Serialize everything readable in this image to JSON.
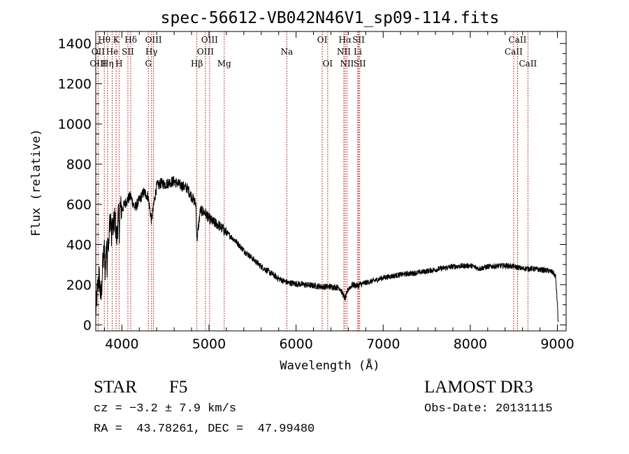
{
  "chart_data": {
    "type": "line",
    "title": "spec-56612-VB042N46V1_sp09-114.fits",
    "xlabel": "Wavelength (Å)",
    "ylabel": "Flux (relative)",
    "xlim": [
      3700,
      9100
    ],
    "ylim": [
      -30,
      1460
    ],
    "xticks": [
      4000,
      5000,
      6000,
      7000,
      8000,
      9000
    ],
    "yticks": [
      0,
      200,
      400,
      600,
      800,
      1000,
      1200,
      1400
    ],
    "grid": false,
    "series": [
      {
        "name": "flux",
        "x": [
          3700,
          3720,
          3740,
          3760,
          3780,
          3800,
          3810,
          3820,
          3830,
          3840,
          3850,
          3860,
          3870,
          3880,
          3890,
          3900,
          3920,
          3940,
          3960,
          3968,
          3980,
          4000,
          4030,
          4060,
          4100,
          4150,
          4200,
          4250,
          4300,
          4340,
          4380,
          4400,
          4450,
          4500,
          4550,
          4600,
          4650,
          4700,
          4750,
          4800,
          4850,
          4861,
          4900,
          4950,
          5000,
          5050,
          5100,
          5150,
          5200,
          5300,
          5400,
          5500,
          5600,
          5700,
          5800,
          5900,
          6000,
          6100,
          6200,
          6300,
          6400,
          6500,
          6563,
          6600,
          6650,
          6700,
          6800,
          6900,
          7000,
          7200,
          7400,
          7600,
          7800,
          8000,
          8100,
          8200,
          8400,
          8500,
          8600,
          8700,
          8800,
          8900,
          8950,
          8980,
          9000,
          9010
        ],
        "values": [
          60,
          180,
          240,
          120,
          300,
          380,
          250,
          420,
          300,
          470,
          380,
          520,
          550,
          430,
          520,
          470,
          540,
          420,
          560,
          440,
          590,
          570,
          600,
          620,
          640,
          580,
          620,
          660,
          640,
          520,
          640,
          690,
          705,
          700,
          710,
          715,
          700,
          690,
          680,
          640,
          600,
          420,
          570,
          560,
          530,
          510,
          500,
          480,
          460,
          420,
          370,
          330,
          290,
          260,
          230,
          210,
          205,
          200,
          195,
          190,
          190,
          185,
          130,
          180,
          200,
          195,
          210,
          220,
          235,
          250,
          260,
          275,
          290,
          295,
          280,
          290,
          295,
          290,
          280,
          280,
          275,
          270,
          260,
          240,
          100,
          0
        ]
      }
    ],
    "line_labels": [
      {
        "text": "Hθ",
        "wl": 3798,
        "row": 1
      },
      {
        "text": "OII",
        "wl": 3727,
        "row": 2
      },
      {
        "text": "He",
        "wl": 3889,
        "row": 2
      },
      {
        "text": "OIII",
        "wl": 3727,
        "row": 3
      },
      {
        "text": "Hη",
        "wl": 3835,
        "row": 3
      },
      {
        "text": "K",
        "wl": 3934,
        "row": 1
      },
      {
        "text": "H",
        "wl": 3968,
        "row": 3
      },
      {
        "text": "SII",
        "wl": 4069,
        "row": 2
      },
      {
        "text": "Hδ",
        "wl": 4102,
        "row": 1
      },
      {
        "text": "OIII",
        "wl": 4363,
        "row": 1
      },
      {
        "text": "Hγ",
        "wl": 4340,
        "row": 2
      },
      {
        "text": "G",
        "wl": 4304,
        "row": 3
      },
      {
        "text": "Hβ",
        "wl": 4861,
        "row": 3
      },
      {
        "text": "OIII",
        "wl": 5007,
        "row": 1
      },
      {
        "text": "OIII",
        "wl": 4959,
        "row": 2
      },
      {
        "text": "Mg",
        "wl": 5175,
        "row": 3
      },
      {
        "text": "Na",
        "wl": 5894,
        "row": 2
      },
      {
        "text": "OI",
        "wl": 6300,
        "row": 1
      },
      {
        "text": "OI",
        "wl": 6363,
        "row": 3
      },
      {
        "text": "Hα",
        "wl": 6563,
        "row": 1
      },
      {
        "text": "NII",
        "wl": 6548,
        "row": 2
      },
      {
        "text": "NII",
        "wl": 6584,
        "row": 3
      },
      {
        "text": "SII",
        "wl": 6717,
        "row": 1
      },
      {
        "text": "Li",
        "wl": 6708,
        "row": 2
      },
      {
        "text": "SII",
        "wl": 6731,
        "row": 3
      },
      {
        "text": "CaII",
        "wl": 8542,
        "row": 1
      },
      {
        "text": "CaII",
        "wl": 8498,
        "row": 2
      },
      {
        "text": "CaII",
        "wl": 8662,
        "row": 3
      }
    ],
    "line_positions": [
      3727,
      3798,
      3835,
      3889,
      3934,
      3968,
      4069,
      4102,
      4304,
      4340,
      4363,
      4861,
      4959,
      5007,
      5175,
      5894,
      6300,
      6363,
      6548,
      6563,
      6584,
      6708,
      6717,
      6731,
      8498,
      8542,
      8662
    ],
    "line_color": "#b00000",
    "trace_color": "#000000"
  },
  "info": {
    "class": "STAR",
    "subclass": "F5",
    "survey": "LAMOST DR3",
    "cz": "cz = −3.2 ± 7.9 km/s",
    "obs_date": "Obs-Date: 20131115",
    "radec": "RA =  43.78261, DEC =  47.99480"
  }
}
